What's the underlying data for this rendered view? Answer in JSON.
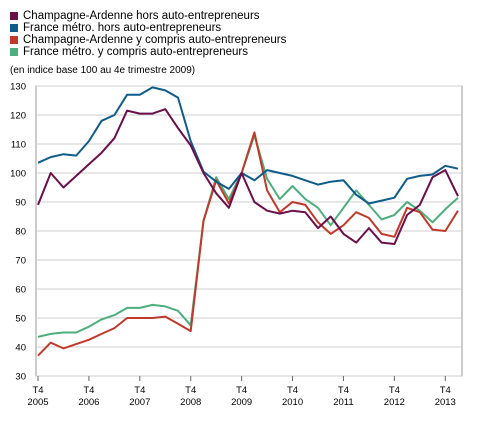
{
  "chart_data": {
    "type": "line",
    "subtitle": "(en indice base 100 au 4e trimestre 2009)",
    "ylim": [
      30,
      130
    ],
    "yticks": [
      30,
      40,
      50,
      60,
      70,
      80,
      90,
      100,
      110,
      120,
      130
    ],
    "grid": true,
    "legend_position": "top-left",
    "x_ticks": [
      {
        "q": "T4",
        "year": "2005"
      },
      {
        "q": "T4",
        "year": "2006"
      },
      {
        "q": "T4",
        "year": "2007"
      },
      {
        "q": "T4",
        "year": "2008"
      },
      {
        "q": "T4",
        "year": "2009"
      },
      {
        "q": "T4",
        "year": "2010"
      },
      {
        "q": "T4",
        "year": "2011"
      },
      {
        "q": "T4",
        "year": "2012"
      },
      {
        "q": "T4",
        "year": "2013"
      }
    ],
    "x_start": "T4 2005",
    "x_end": "T3 2014",
    "series": [
      {
        "name": "Champagne-Ardenne hors auto-entrepreneurs",
        "color": "#6b0f4a",
        "values": [
          89,
          100,
          95,
          99,
          103,
          107,
          112,
          121.5,
          120.5,
          120.5,
          122,
          115.5,
          109.5,
          100,
          93,
          88,
          100,
          90,
          87,
          86,
          87,
          86.5,
          81,
          85,
          79,
          76,
          81,
          76,
          75.5,
          85.5,
          89,
          98.5,
          101,
          92
        ]
      },
      {
        "name": "France métro. hors auto-entrepreneurs",
        "color": "#0f5c8a",
        "values": [
          103.5,
          105.5,
          106.5,
          106,
          111,
          118,
          120,
          127,
          127,
          129.5,
          128.5,
          126,
          111,
          100.5,
          97,
          94.5,
          100,
          97.5,
          101,
          100,
          99,
          97.5,
          96,
          97,
          97.5,
          92.5,
          89.5,
          90.5,
          91.5,
          98,
          99,
          99.5,
          102.5,
          101.5
        ]
      },
      {
        "name": "Champagne-Ardenne y compris auto-entrepreneurs",
        "color": "#c0392b",
        "values": [
          37,
          41.5,
          39.5,
          41,
          42.5,
          44.5,
          46.5,
          50,
          50,
          50,
          50.5,
          48,
          45.5,
          83.5,
          97.5,
          89.5,
          100,
          114,
          94,
          86.5,
          90,
          89,
          83,
          79,
          82,
          86.5,
          84.5,
          79,
          78,
          88,
          86.5,
          80.5,
          80,
          87
        ]
      },
      {
        "name": "France métro. y compris auto-entrepreneurs",
        "color": "#4caf7d",
        "values": [
          43.5,
          44.5,
          45,
          45,
          47,
          49.5,
          51,
          53.5,
          53.5,
          54.5,
          54,
          52.5,
          47.5,
          83.5,
          98.5,
          91,
          100,
          113,
          98,
          91,
          95.5,
          91,
          88,
          82,
          88,
          94,
          89,
          84,
          85.5,
          90,
          87,
          83,
          87.5,
          91.5
        ]
      }
    ]
  }
}
